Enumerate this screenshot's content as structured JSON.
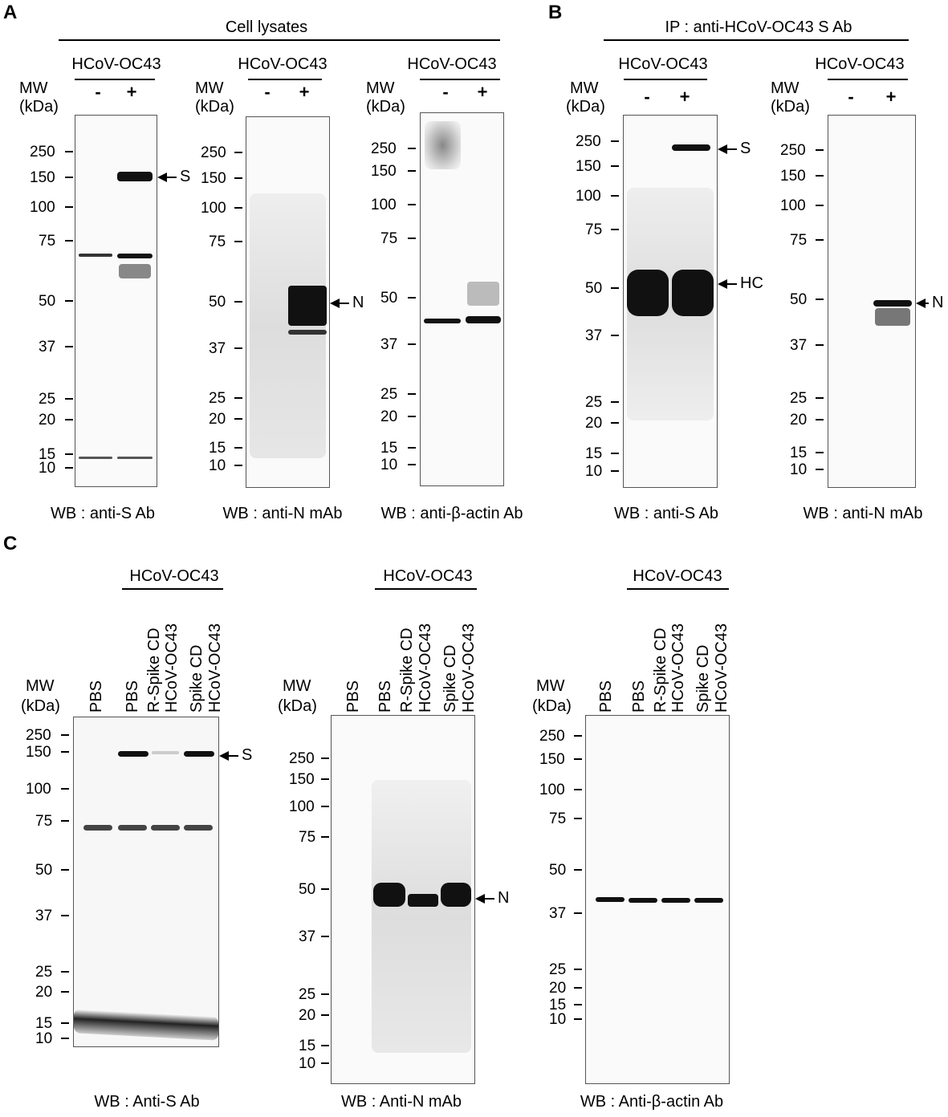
{
  "panels": {
    "A": {
      "letter": "A",
      "header": "Cell lysates",
      "blots": [
        {
          "group": "HCoV-OC43",
          "signs": [
            "-",
            "+"
          ],
          "mw": "MW",
          "kda": "(kDa)",
          "markers": [
            "250",
            "150",
            "100",
            "75",
            "50",
            "37",
            "25",
            "20",
            "15",
            "10"
          ],
          "arrows": [
            "S"
          ],
          "caption": "WB : anti-S Ab"
        },
        {
          "group": "HCoV-OC43",
          "signs": [
            "-",
            "+"
          ],
          "mw": "MW",
          "kda": "(kDa)",
          "markers": [
            "250",
            "150",
            "100",
            "75",
            "50",
            "37",
            "25",
            "20",
            "15",
            "10"
          ],
          "arrows": [
            "N"
          ],
          "caption": "WB : anti-N mAb"
        },
        {
          "group": "HCoV-OC43",
          "signs": [
            "-",
            "+"
          ],
          "mw": "MW",
          "kda": "(kDa)",
          "markers": [
            "250",
            "150",
            "100",
            "75",
            "50",
            "37",
            "25",
            "20",
            "15",
            "10"
          ],
          "arrows": [],
          "caption": "WB : anti-β-actin Ab"
        }
      ]
    },
    "B": {
      "letter": "B",
      "header": "IP : anti-HCoV-OC43 S Ab",
      "blots": [
        {
          "group": "HCoV-OC43",
          "signs": [
            "-",
            "+"
          ],
          "mw": "MW",
          "kda": "(kDa)",
          "markers": [
            "250",
            "150",
            "100",
            "75",
            "50",
            "37",
            "25",
            "20",
            "15",
            "10"
          ],
          "arrows": [
            "S",
            "HC"
          ],
          "caption": "WB : anti-S Ab"
        },
        {
          "group": "HCoV-OC43",
          "signs": [
            "-",
            "+"
          ],
          "mw": "MW",
          "kda": "(kDa)",
          "markers": [
            "250",
            "150",
            "100",
            "75",
            "50",
            "37",
            "25",
            "20",
            "15",
            "10"
          ],
          "arrows": [
            "N"
          ],
          "caption": "WB : anti-N mAb"
        }
      ]
    },
    "C": {
      "letter": "C",
      "lanes": [
        "PBS",
        "PBS",
        "R-Spike CD",
        "HCoV-OC43",
        "Spike CD",
        "HCoV-OC43"
      ],
      "blots": [
        {
          "group": "HCoV-OC43",
          "mw": "MW",
          "kda": "(kDa)",
          "markers": [
            "250",
            "150",
            "100",
            "75",
            "50",
            "37",
            "25",
            "20",
            "15",
            "10"
          ],
          "arrows": [
            "S"
          ],
          "caption": "WB : Anti-S Ab"
        },
        {
          "group": "HCoV-OC43",
          "mw": "MW",
          "kda": "(kDa)",
          "markers": [
            "250",
            "150",
            "100",
            "75",
            "50",
            "37",
            "25",
            "20",
            "15",
            "10"
          ],
          "arrows": [
            "N"
          ],
          "caption": "WB : Anti-N mAb"
        },
        {
          "group": "HCoV-OC43",
          "mw": "MW",
          "kda": "(kDa)",
          "markers": [
            "250",
            "150",
            "100",
            "75",
            "50",
            "37",
            "25",
            "20",
            "15",
            "10"
          ],
          "arrows": [],
          "caption": "WB : Anti-β-actin Ab"
        }
      ]
    }
  }
}
